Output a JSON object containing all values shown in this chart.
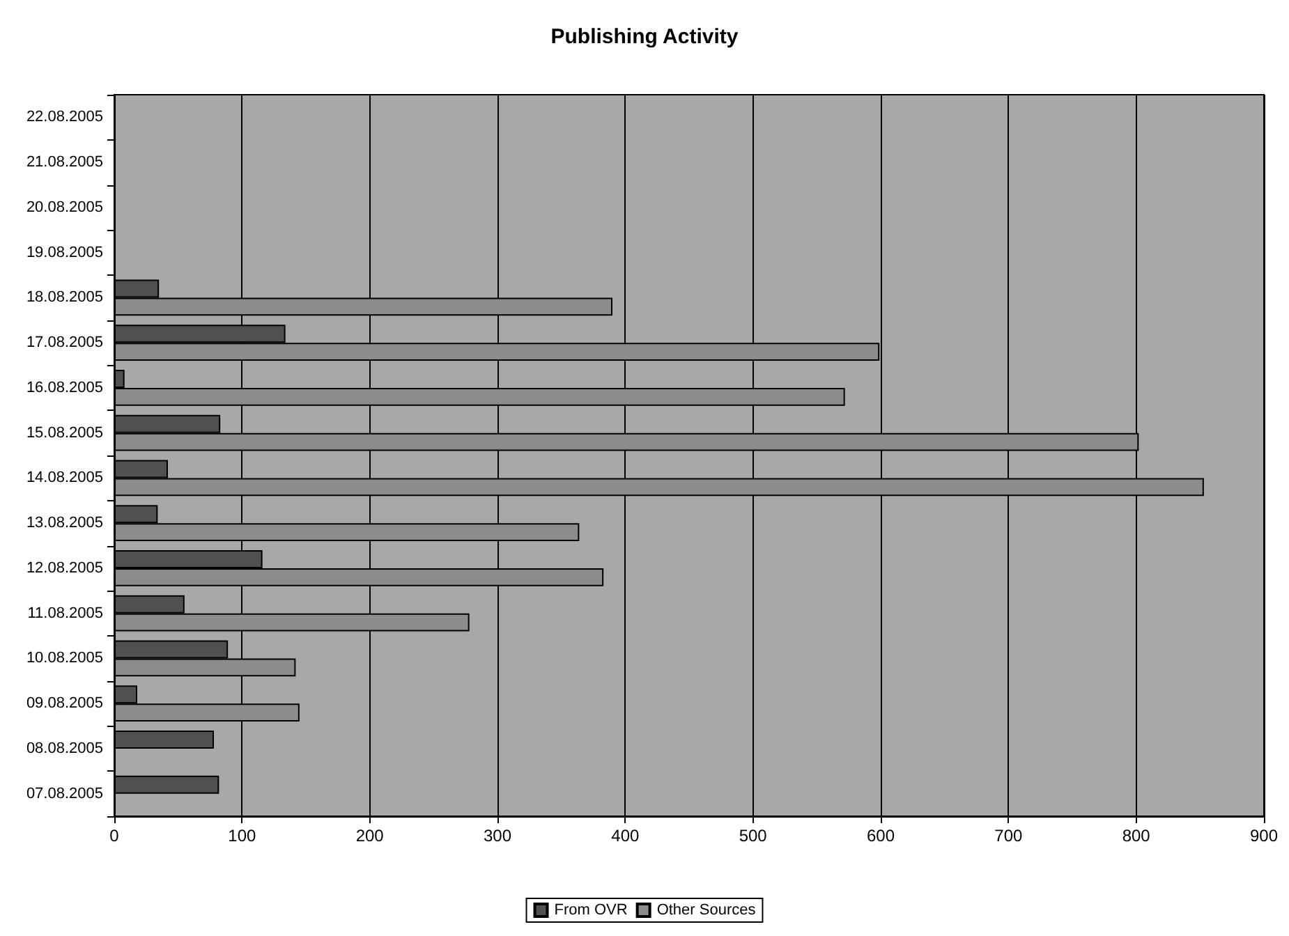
{
  "chart_data": {
    "type": "bar",
    "orientation": "horizontal",
    "title": "Publishing Activity",
    "categories": [
      "22.08.2005",
      "21.08.2005",
      "20.08.2005",
      "19.08.2005",
      "18.08.2005",
      "17.08.2005",
      "16.08.2005",
      "15.08.2005",
      "14.08.2005",
      "13.08.2005",
      "12.08.2005",
      "11.08.2005",
      "10.08.2005",
      "09.08.2005",
      "08.08.2005",
      "07.08.2005"
    ],
    "series": [
      {
        "name": "From OVR",
        "color": "#505050",
        "values": [
          0,
          0,
          0,
          0,
          35,
          134,
          8,
          83,
          42,
          34,
          116,
          55,
          89,
          18,
          78,
          82
        ]
      },
      {
        "name": "Other Sources",
        "color": "#8c8c8c",
        "values": [
          0,
          0,
          0,
          0,
          390,
          599,
          572,
          802,
          853,
          364,
          383,
          278,
          142,
          145,
          0,
          0
        ]
      }
    ],
    "xlim": [
      0,
      900
    ],
    "xticks": [
      0,
      100,
      200,
      300,
      400,
      500,
      600,
      700,
      800,
      900
    ],
    "grid": "x",
    "legend": "bottom"
  }
}
